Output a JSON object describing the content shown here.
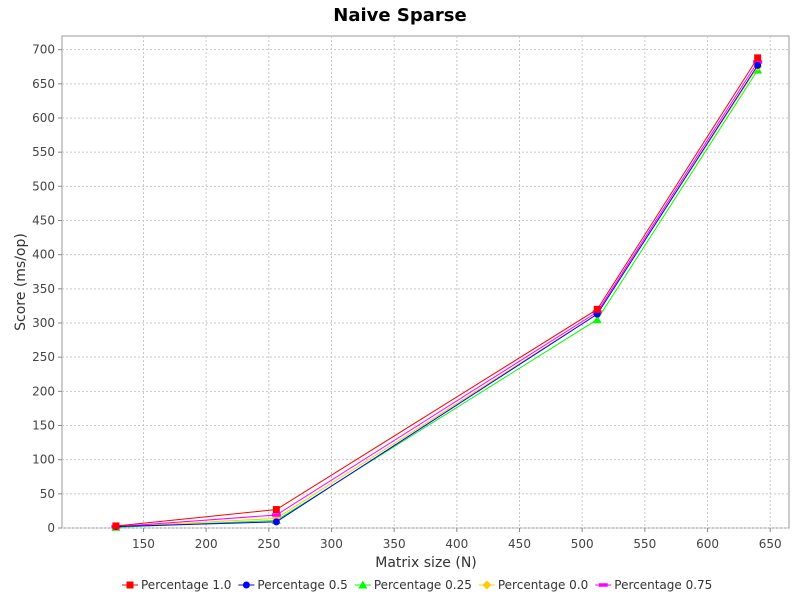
{
  "chart_data": {
    "type": "line",
    "title": "Naive Sparse",
    "xlabel": "Matrix size (N)",
    "ylabel": "Score (ms/op)",
    "xlim": [
      85,
      665
    ],
    "ylim": [
      0,
      720
    ],
    "xticks": [
      150,
      200,
      250,
      300,
      350,
      400,
      450,
      500,
      550,
      600,
      650
    ],
    "yticks": [
      0,
      50,
      100,
      150,
      200,
      250,
      300,
      350,
      400,
      450,
      500,
      550,
      600,
      650,
      700
    ],
    "grid": true,
    "legend_position": "bottom",
    "x": [
      128,
      256,
      512,
      640
    ],
    "series": [
      {
        "name": "Percentage 1.0",
        "color": "#ff0000",
        "marker": "square",
        "values": [
          3,
          27,
          320,
          688
        ]
      },
      {
        "name": "Percentage 0.5",
        "color": "#0000ff",
        "marker": "circle",
        "values": [
          2,
          9,
          313,
          677
        ]
      },
      {
        "name": "Percentage 0.25",
        "color": "#00ff00",
        "marker": "triangle-up",
        "values": [
          1,
          11,
          305,
          670
        ]
      },
      {
        "name": "Percentage 0.0",
        "color": "#ffcc00",
        "marker": "diamond",
        "values": [
          2,
          14,
          313,
          675
        ]
      },
      {
        "name": "Percentage 0.75",
        "color": "#ff00ff",
        "marker": "rect-horizontal",
        "values": [
          2,
          19,
          316,
          682
        ]
      }
    ]
  }
}
